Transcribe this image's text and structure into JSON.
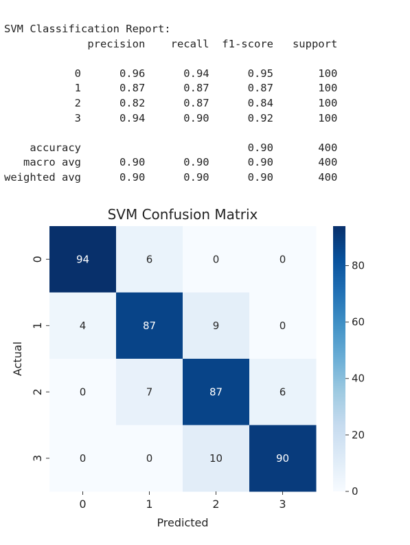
{
  "report": {
    "title": "SVM Classification Report:",
    "headers": [
      "precision",
      "recall",
      "f1-score",
      "support"
    ],
    "class_rows": [
      {
        "label": "0",
        "precision": "0.96",
        "recall": "0.94",
        "f1": "0.95",
        "support": "100"
      },
      {
        "label": "1",
        "precision": "0.87",
        "recall": "0.87",
        "f1": "0.87",
        "support": "100"
      },
      {
        "label": "2",
        "precision": "0.82",
        "recall": "0.87",
        "f1": "0.84",
        "support": "100"
      },
      {
        "label": "3",
        "precision": "0.94",
        "recall": "0.90",
        "f1": "0.92",
        "support": "100"
      }
    ],
    "summary_rows": [
      {
        "label": "accuracy",
        "precision": "",
        "recall": "",
        "f1": "0.90",
        "support": "400"
      },
      {
        "label": "macro avg",
        "precision": "0.90",
        "recall": "0.90",
        "f1": "0.90",
        "support": "400"
      },
      {
        "label": "weighted avg",
        "precision": "0.90",
        "recall": "0.90",
        "f1": "0.90",
        "support": "400"
      }
    ]
  },
  "chart_data": {
    "type": "heatmap",
    "title": "SVM Confusion Matrix",
    "xlabel": "Predicted",
    "ylabel": "Actual",
    "x_categories": [
      "0",
      "1",
      "2",
      "3"
    ],
    "y_categories": [
      "0",
      "1",
      "2",
      "3"
    ],
    "values": [
      [
        94,
        6,
        0,
        0
      ],
      [
        4,
        87,
        9,
        0
      ],
      [
        0,
        7,
        87,
        6
      ],
      [
        0,
        0,
        10,
        90
      ]
    ],
    "colormap": "Blues",
    "vmin": 0,
    "vmax": 94,
    "colorbar_ticks": [
      0,
      20,
      40,
      60,
      80
    ],
    "colorbar_tick_labels": [
      "0",
      "20",
      "40",
      "60",
      "80"
    ],
    "grid": false
  }
}
